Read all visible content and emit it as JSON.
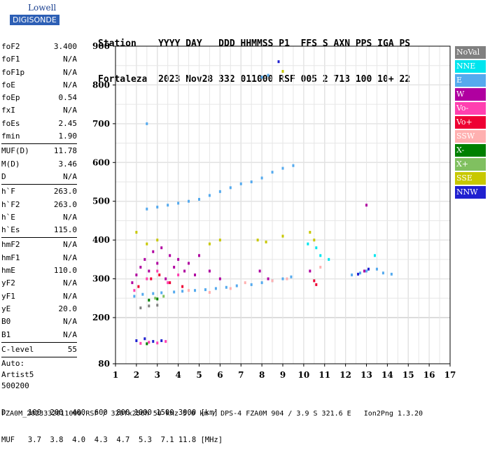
{
  "logo": {
    "line1": "Lowell",
    "line2": "DIGISONDE"
  },
  "header": {
    "line1": "Station    YYYY DAY   DDD HHMMSS P1  FFS S AXN PPS IGA PS",
    "line2": "Fortaleza  2023 Nov28 332 011000 RSF 005 2 713 100 10+ 22"
  },
  "params": [
    [
      {
        "k": "foF2",
        "v": "3.400"
      },
      {
        "k": "foF1",
        "v": "N/A"
      },
      {
        "k": "foF1p",
        "v": "N/A"
      },
      {
        "k": "foE",
        "v": "N/A"
      },
      {
        "k": "foEp",
        "v": "0.54"
      },
      {
        "k": "fxI",
        "v": "N/A"
      },
      {
        "k": "foEs",
        "v": "2.45"
      },
      {
        "k": "fmin",
        "v": "1.90"
      }
    ],
    [
      {
        "k": "MUF(D)",
        "v": "11.78"
      },
      {
        "k": "M(D)",
        "v": "3.46"
      },
      {
        "k": "D",
        "v": "N/A"
      }
    ],
    [
      {
        "k": "h`F",
        "v": "263.0"
      },
      {
        "k": "h`F2",
        "v": "263.0"
      },
      {
        "k": "h`E",
        "v": "N/A"
      },
      {
        "k": "h`Es",
        "v": "115.0"
      }
    ],
    [
      {
        "k": "hmF2",
        "v": "N/A"
      },
      {
        "k": "hmF1",
        "v": "N/A"
      },
      {
        "k": "hmE",
        "v": "110.0"
      },
      {
        "k": "yF2",
        "v": "N/A"
      },
      {
        "k": "yF1",
        "v": "N/A"
      },
      {
        "k": "yE",
        "v": "20.0"
      },
      {
        "k": "B0",
        "v": "N/A"
      },
      {
        "k": "B1",
        "v": "N/A"
      }
    ],
    [
      {
        "k": "C-level",
        "v": "55"
      }
    ]
  ],
  "auto": {
    "l1": "Auto:",
    "l2": "Artist5",
    "l3": "500200"
  },
  "legend": [
    {
      "label": "NoVal",
      "color": "#808080"
    },
    {
      "label": "NNE",
      "color": "#00e5ee"
    },
    {
      "label": "E",
      "color": "#55aaee"
    },
    {
      "label": "W",
      "color": "#b000a0"
    },
    {
      "label": "Vo-",
      "color": "#ff40b0"
    },
    {
      "label": "Vo+",
      "color": "#ee0033"
    },
    {
      "label": "SSW",
      "color": "#ffb0b0"
    },
    {
      "label": "X-",
      "color": "#008000"
    },
    {
      "label": "X+",
      "color": "#80c060"
    },
    {
      "label": "SSE",
      "color": "#c8c800"
    },
    {
      "label": "NNW",
      "color": "#2020d0"
    }
  ],
  "bottom": {
    "l1": "D     100  200  400  600  800 1000 1500 3000 [km]",
    "l2": "MUF   3.7  3.8  4.0  4.3  4.7  5.3  7.1 11.8 [MHz]"
  },
  "footer": "FZA0M_2023332011000.RSF / 320fx256h 50 kHz 5.0 km / DPS-4 FZA0M 904 / 3.9 S 321.6 E   Ion2Png 1.3.20",
  "chart_data": {
    "type": "scatter",
    "xlim": [
      1,
      17
    ],
    "ylim": [
      80,
      900
    ],
    "x_ticks": [
      1,
      2,
      3,
      4,
      5,
      6,
      7,
      8,
      9,
      10,
      11,
      12,
      13,
      14,
      15,
      16,
      17
    ],
    "y_ticks": [
      80,
      200,
      300,
      400,
      500,
      600,
      700,
      800,
      900
    ],
    "grid": true,
    "series": [
      {
        "name": "E",
        "color": "#55aaee",
        "points": [
          [
            1.9,
            255
          ],
          [
            2.3,
            260
          ],
          [
            2.8,
            262
          ],
          [
            3.2,
            264
          ],
          [
            3.8,
            266
          ],
          [
            4.2,
            268
          ],
          [
            4.8,
            270
          ],
          [
            5.3,
            272
          ],
          [
            5.8,
            275
          ],
          [
            6.3,
            278
          ],
          [
            6.8,
            282
          ],
          [
            7.5,
            285
          ],
          [
            8.0,
            290
          ],
          [
            8.5,
            295
          ],
          [
            9.0,
            300
          ],
          [
            9.4,
            305
          ],
          [
            2.5,
            480
          ],
          [
            3.0,
            485
          ],
          [
            3.5,
            490
          ],
          [
            4.0,
            495
          ],
          [
            4.5,
            500
          ],
          [
            5.0,
            505
          ],
          [
            5.5,
            515
          ],
          [
            6.0,
            525
          ],
          [
            6.5,
            535
          ],
          [
            7.0,
            545
          ],
          [
            7.5,
            550
          ],
          [
            8.0,
            560
          ],
          [
            8.5,
            575
          ],
          [
            9.0,
            585
          ],
          [
            9.5,
            592
          ],
          [
            8.0,
            820
          ],
          [
            8.3,
            825
          ],
          [
            2.5,
            700
          ],
          [
            12.3,
            310
          ],
          [
            12.7,
            315
          ],
          [
            13.0,
            320
          ],
          [
            13.5,
            325
          ],
          [
            13.8,
            315
          ],
          [
            14.2,
            312
          ]
        ]
      },
      {
        "name": "W",
        "color": "#b000a0",
        "points": [
          [
            1.8,
            290
          ],
          [
            2.0,
            310
          ],
          [
            2.2,
            330
          ],
          [
            2.4,
            350
          ],
          [
            2.6,
            320
          ],
          [
            2.8,
            370
          ],
          [
            3.0,
            340
          ],
          [
            3.2,
            380
          ],
          [
            3.4,
            300
          ],
          [
            3.6,
            360
          ],
          [
            3.8,
            330
          ],
          [
            4.0,
            350
          ],
          [
            4.3,
            320
          ],
          [
            4.5,
            340
          ],
          [
            4.8,
            310
          ],
          [
            5.0,
            360
          ],
          [
            5.5,
            320
          ],
          [
            6.0,
            300
          ],
          [
            7.9,
            320
          ],
          [
            8.3,
            300
          ],
          [
            10.3,
            320
          ],
          [
            12.9,
            320
          ],
          [
            13.0,
            490
          ]
        ]
      },
      {
        "name": "Vo-",
        "color": "#ff40b0",
        "points": [
          [
            1.9,
            270
          ],
          [
            2.5,
            300
          ],
          [
            3.0,
            320
          ],
          [
            3.5,
            290
          ],
          [
            4.0,
            310
          ],
          [
            2.2,
            133
          ],
          [
            2.6,
            136
          ],
          [
            3.0,
            134
          ],
          [
            3.4,
            138
          ]
        ]
      },
      {
        "name": "Vo+",
        "color": "#ee0033",
        "points": [
          [
            2.1,
            280
          ],
          [
            2.7,
            300
          ],
          [
            3.1,
            310
          ],
          [
            3.6,
            290
          ],
          [
            4.2,
            280
          ],
          [
            10.5,
            295
          ],
          [
            10.6,
            285
          ]
        ]
      },
      {
        "name": "SSW",
        "color": "#ffb0b0",
        "points": [
          [
            4.5,
            270
          ],
          [
            5.5,
            265
          ],
          [
            6.5,
            275
          ],
          [
            7.2,
            290
          ],
          [
            8.5,
            295
          ],
          [
            9.2,
            300
          ],
          [
            10.8,
            330
          ]
        ]
      },
      {
        "name": "X-",
        "color": "#008000",
        "points": [
          [
            2.6,
            245
          ],
          [
            3.0,
            248
          ],
          [
            2.5,
            132
          ]
        ]
      },
      {
        "name": "X+",
        "color": "#80c060",
        "points": [
          [
            2.9,
            250
          ],
          [
            3.3,
            255
          ]
        ]
      },
      {
        "name": "SSE",
        "color": "#c8c800",
        "points": [
          [
            2.0,
            420
          ],
          [
            2.5,
            390
          ],
          [
            3.0,
            400
          ],
          [
            5.5,
            390
          ],
          [
            6.0,
            400
          ],
          [
            7.8,
            400
          ],
          [
            8.2,
            395
          ],
          [
            9.0,
            410
          ],
          [
            9.0,
            835
          ],
          [
            10.3,
            420
          ],
          [
            10.5,
            400
          ]
        ]
      },
      {
        "name": "NNE",
        "color": "#00e5ee",
        "points": [
          [
            10.2,
            390
          ],
          [
            10.8,
            360
          ],
          [
            11.2,
            350
          ],
          [
            13.4,
            360
          ],
          [
            10.6,
            380
          ]
        ]
      },
      {
        "name": "NNW",
        "color": "#2020d0",
        "points": [
          [
            2.0,
            140
          ],
          [
            2.4,
            145
          ],
          [
            2.8,
            138
          ],
          [
            3.2,
            140
          ],
          [
            12.6,
            312
          ],
          [
            13.1,
            325
          ],
          [
            8.8,
            860
          ]
        ]
      },
      {
        "name": "NoVal",
        "color": "#808080",
        "points": [
          [
            2.2,
            225
          ],
          [
            2.6,
            230
          ],
          [
            3.0,
            232
          ]
        ]
      }
    ]
  }
}
